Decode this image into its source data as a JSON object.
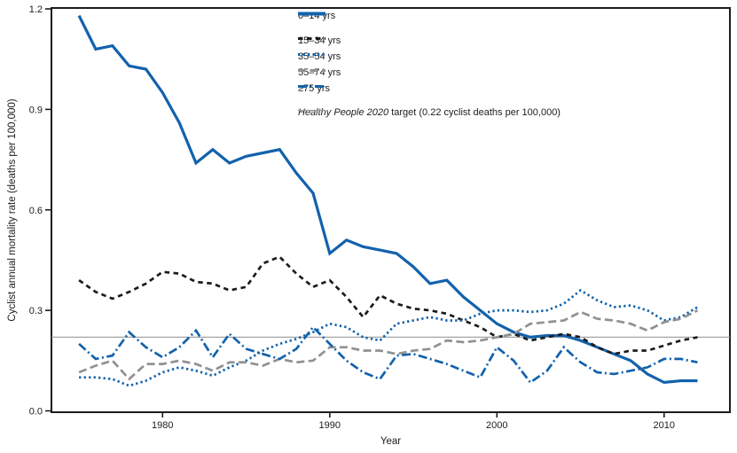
{
  "figure": {
    "y_axis": {
      "title": "Cyclist annual mortality rate (deaths per 100,000)",
      "tick_labels": [
        "0.0",
        "0.3",
        "0.6",
        "0.9",
        "1.2"
      ],
      "tick_values": [
        0.0,
        0.3,
        0.6,
        0.9,
        1.2
      ]
    },
    "x_axis": {
      "title": "Year",
      "tick_labels": [
        "1980",
        "1990",
        "2000",
        "2010"
      ],
      "tick_values": [
        1980,
        1990,
        2000,
        2010
      ]
    }
  },
  "chart_data": {
    "type": "line",
    "title": "",
    "xlabel": "Year",
    "ylabel": "Cyclist annual mortality rate (deaths per 100,000)",
    "ylim": [
      0,
      1.2
    ],
    "xlim": [
      1973.4,
      2013.9
    ],
    "grid": false,
    "legend_position": "top-center-inside",
    "x": [
      1975,
      1976,
      1977,
      1978,
      1979,
      1980,
      1981,
      1982,
      1983,
      1984,
      1985,
      1986,
      1987,
      1988,
      1989,
      1990,
      1991,
      1992,
      1993,
      1994,
      1995,
      1996,
      1997,
      1998,
      1999,
      2000,
      2001,
      2002,
      2003,
      2004,
      2005,
      2006,
      2007,
      2008,
      2009,
      2010,
      2011,
      2012
    ],
    "series": [
      {
        "name": "0–14 yrs",
        "style": "solid",
        "color": "#1262AC",
        "values": [
          1.18,
          1.08,
          1.09,
          1.03,
          1.02,
          0.95,
          0.86,
          0.74,
          0.78,
          0.74,
          0.76,
          0.77,
          0.78,
          0.71,
          0.65,
          0.47,
          0.51,
          0.49,
          0.48,
          0.47,
          0.43,
          0.38,
          0.39,
          0.34,
          0.3,
          0.26,
          0.235,
          0.22,
          0.225,
          0.225,
          0.21,
          0.19,
          0.17,
          0.15,
          0.11,
          0.085,
          0.09,
          0.09
        ]
      },
      {
        "name": "15–34 yrs",
        "style": "dashed",
        "color": "#1c1c1c",
        "values": [
          0.39,
          0.355,
          0.335,
          0.355,
          0.38,
          0.415,
          0.41,
          0.385,
          0.38,
          0.36,
          0.37,
          0.44,
          0.46,
          0.41,
          0.37,
          0.39,
          0.34,
          0.28,
          0.345,
          0.32,
          0.305,
          0.3,
          0.29,
          0.27,
          0.25,
          0.22,
          0.23,
          0.21,
          0.22,
          0.23,
          0.22,
          0.19,
          0.17,
          0.18,
          0.18,
          0.195,
          0.21,
          0.22
        ]
      },
      {
        "name": "35–54 yrs",
        "style": "dotted",
        "color": "#1262AC",
        "values": [
          0.1,
          0.1,
          0.095,
          0.075,
          0.09,
          0.115,
          0.13,
          0.12,
          0.105,
          0.13,
          0.15,
          0.18,
          0.2,
          0.215,
          0.235,
          0.26,
          0.25,
          0.22,
          0.21,
          0.26,
          0.27,
          0.28,
          0.27,
          0.27,
          0.29,
          0.3,
          0.3,
          0.295,
          0.3,
          0.32,
          0.36,
          0.33,
          0.31,
          0.315,
          0.3,
          0.27,
          0.28,
          0.31
        ]
      },
      {
        "name": "55–74 yrs",
        "style": "long-dash",
        "color": "#919191",
        "values": [
          0.115,
          0.135,
          0.15,
          0.095,
          0.14,
          0.14,
          0.15,
          0.14,
          0.12,
          0.145,
          0.145,
          0.135,
          0.155,
          0.145,
          0.15,
          0.19,
          0.19,
          0.18,
          0.18,
          0.17,
          0.18,
          0.185,
          0.21,
          0.205,
          0.21,
          0.22,
          0.23,
          0.26,
          0.265,
          0.27,
          0.295,
          0.275,
          0.27,
          0.26,
          0.24,
          0.265,
          0.275,
          0.3
        ]
      },
      {
        "name": "≥75 yrs",
        "style": "dash-dot",
        "color": "#1262AC",
        "values": [
          0.2,
          0.155,
          0.165,
          0.235,
          0.19,
          0.16,
          0.19,
          0.24,
          0.16,
          0.23,
          0.185,
          0.17,
          0.155,
          0.185,
          0.25,
          0.2,
          0.15,
          0.115,
          0.095,
          0.165,
          0.17,
          0.155,
          0.14,
          0.12,
          0.1,
          0.19,
          0.15,
          0.085,
          0.12,
          0.19,
          0.145,
          0.115,
          0.11,
          0.12,
          0.13,
          0.155,
          0.155,
          0.145
        ]
      }
    ],
    "target_line": {
      "value": 0.22,
      "color": "#9a9a9a",
      "label_italic": "Healthy People 2020",
      "label_rest": " target (0.22 cyclist deaths per 100,000)"
    },
    "colors": {
      "accent_blue": "#1262AC",
      "gray_series": "#919191",
      "target_gray": "#9a9a9a",
      "axis_black": "#1c1c1c"
    }
  }
}
